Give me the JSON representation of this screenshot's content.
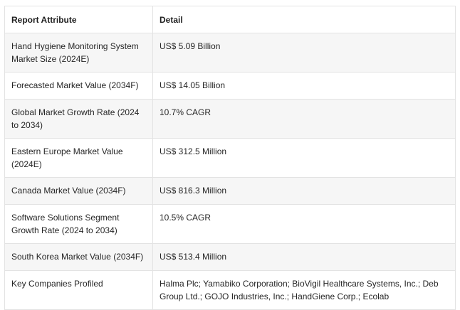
{
  "table": {
    "headers": {
      "attribute": "Report Attribute",
      "detail": "Detail"
    },
    "rows": [
      {
        "attribute": "Hand Hygiene Monitoring System Market Size (2024E)",
        "detail": "US$ 5.09 Billion"
      },
      {
        "attribute": "Forecasted Market Value (2034F)",
        "detail": "US$ 14.05 Billion"
      },
      {
        "attribute": "Global Market Growth Rate (2024 to 2034)",
        "detail": "10.7% CAGR"
      },
      {
        "attribute": "Eastern Europe Market Value (2024E)",
        "detail": "US$ 312.5 Million"
      },
      {
        "attribute": "Canada Market Value (2034F)",
        "detail": "US$ 816.3 Million"
      },
      {
        "attribute": "Software Solutions Segment Growth Rate (2024 to 2034)",
        "detail": "10.5% CAGR"
      },
      {
        "attribute": "South Korea Market Value (2034F)",
        "detail": "US$ 513.4 Million"
      },
      {
        "attribute": "Key Companies Profiled",
        "detail": "Halma Plc; Yamabiko Corporation; BioVigil Healthcare Systems, Inc.; Deb Group Ltd.; GOJO Industries, Inc.; HandGiene Corp.; Ecolab"
      }
    ]
  }
}
